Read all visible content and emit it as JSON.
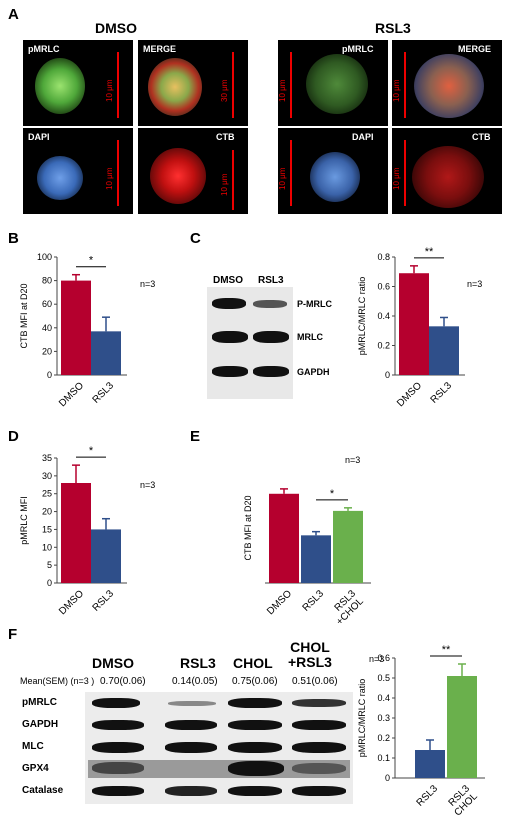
{
  "panels": {
    "A": "A",
    "B": "B",
    "C": "C",
    "D": "D",
    "E": "E",
    "F": "F"
  },
  "micro": {
    "dmso_title": "DMSO",
    "rsl3_title": "RSL3",
    "tags": {
      "pmrlc": "pMRLC",
      "merge": "MERGE",
      "dapi": "DAPI",
      "ctb": "CTB"
    },
    "scale_label": "10 μm",
    "scale_label_alt": "30 μm"
  },
  "blotC": {
    "lanes": [
      "DMSO",
      "RSL3"
    ],
    "rows": [
      "P-MRLC",
      "MRLC",
      "GAPDH"
    ]
  },
  "blotF": {
    "lanes": [
      "DMSO",
      "RSL3",
      "CHOL",
      "CHOL\n+RSL3"
    ],
    "mean_label": "Mean(SEM) (n=3 )",
    "means": [
      "0.70(0.06)",
      "0.14(0.05)",
      "0.75(0.06)",
      "0.51(0.06)"
    ],
    "rows": [
      "pMRLC",
      "GAPDH",
      "MLC",
      "GPX4",
      "Catalase"
    ]
  },
  "colors": {
    "red": "#b5002e",
    "blue": "#2f4f8a",
    "green": "#6ab04c"
  },
  "chart_data": [
    {
      "id": "B",
      "type": "bar",
      "categories": [
        "DMSO",
        "RSL3"
      ],
      "values": [
        80,
        37
      ],
      "errors": [
        5,
        12
      ],
      "ylabel": "CTB MFI at D20",
      "ylim": [
        0,
        100
      ],
      "yticks": [
        0,
        20,
        40,
        60,
        80,
        100
      ],
      "annotation": "n=3",
      "sig": "*"
    },
    {
      "id": "C",
      "type": "bar",
      "categories": [
        "DMSO",
        "RSL3"
      ],
      "values": [
        0.69,
        0.33
      ],
      "errors": [
        0.05,
        0.06
      ],
      "ylabel": "pMRLC/MRLC ratio",
      "ylim": [
        0,
        0.8
      ],
      "yticks": [
        "0",
        "0.2",
        "0.4",
        "0.6",
        "0.8"
      ],
      "annotation": "n=3",
      "sig": "**"
    },
    {
      "id": "D",
      "type": "bar",
      "categories": [
        "DMSO",
        "RSL3"
      ],
      "values": [
        28,
        15
      ],
      "errors": [
        5,
        3
      ],
      "ylabel": "pMRLC MFI",
      "ylim": [
        0,
        35
      ],
      "yticks": [
        0,
        5,
        10,
        15,
        20,
        25,
        30,
        35
      ],
      "annotation": "n=3",
      "sig": "*"
    },
    {
      "id": "E",
      "type": "bar",
      "categories": [
        "DMSO",
        "RSL3",
        "RSL3\n+CHOL"
      ],
      "values": [
        7.3,
        3.9,
        5.9
      ],
      "errors": [
        0.4,
        0.3,
        0.25
      ],
      "ylabel": "CTB MFI at D20",
      "annotation": "n=3",
      "sig": "*"
    },
    {
      "id": "F",
      "type": "bar",
      "categories": [
        "RSL3",
        "RSL3\nCHOL"
      ],
      "values": [
        0.14,
        0.51
      ],
      "errors": [
        0.05,
        0.06
      ],
      "ylabel": "pMRLC/MRLC ratio",
      "ylim": [
        0,
        0.6
      ],
      "yticks": [
        "0",
        "0.1",
        "0.2",
        "0.3",
        "0.4",
        "0.5",
        "0.6"
      ],
      "annotation": "n=3",
      "sig": "**"
    }
  ]
}
